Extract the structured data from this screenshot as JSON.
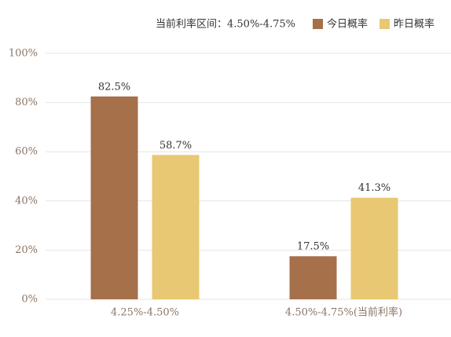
{
  "chart_data": {
    "type": "bar",
    "annotation": "当前利率区间：4.50%-4.75%",
    "categories": [
      "4.25%-4.50%",
      "4.50%-4.75%(当前利率)"
    ],
    "series": [
      {
        "name": "今日概率",
        "color": "#a5704a",
        "values": [
          82.5,
          17.5
        ],
        "value_labels": [
          "82.5%",
          "17.5%"
        ]
      },
      {
        "name": "昨日概率",
        "color": "#e8c872",
        "values": [
          58.7,
          41.3
        ],
        "value_labels": [
          "58.7%",
          "41.3%"
        ]
      }
    ],
    "ylim": [
      0,
      100
    ],
    "yticks": [
      {
        "value": 0,
        "label": "0%"
      },
      {
        "value": 20,
        "label": "20%"
      },
      {
        "value": 40,
        "label": "40%"
      },
      {
        "value": 60,
        "label": "60%"
      },
      {
        "value": 80,
        "label": "80%"
      },
      {
        "value": 100,
        "label": "100%"
      }
    ],
    "grid": true
  }
}
